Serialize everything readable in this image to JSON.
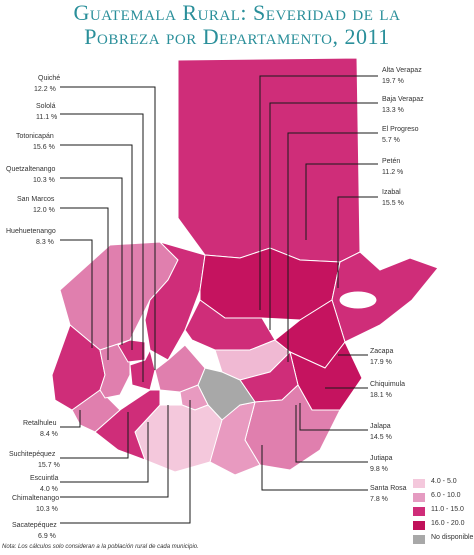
{
  "title": {
    "line1": "Guatemala Rural: Severidad de la",
    "line2": "Pobreza por Departamento, 2011"
  },
  "departments": {
    "quiche": {
      "name": "Quiché",
      "value": "12.2 %",
      "pct": 12.2,
      "color": "#cf2d79"
    },
    "solola": {
      "name": "Sololá",
      "value": "11.1 %",
      "pct": 11.1,
      "color": "#cf2d79"
    },
    "totonicapan": {
      "name": "Totonicapán",
      "value": "15.6 %",
      "pct": 15.6,
      "color": "#cf2d79"
    },
    "quetzaltenango": {
      "name": "Quetzaltenango",
      "value": "10.3 %",
      "pct": 10.3,
      "color": "#e07fae"
    },
    "san_marcos": {
      "name": "San Marcos",
      "value": "12.0 %",
      "pct": 12.0,
      "color": "#cf2d79"
    },
    "huehuetenango": {
      "name": "Huehuetenango",
      "value": "8.3 %",
      "pct": 8.3,
      "color": "#e07fae"
    },
    "alta_verapaz": {
      "name": "Alta Verapaz",
      "value": "19.7 %",
      "pct": 19.7,
      "color": "#c5135f"
    },
    "baja_verapaz": {
      "name": "Baja Verapaz",
      "value": "13.3 %",
      "pct": 13.3,
      "color": "#cf2d79"
    },
    "el_progreso": {
      "name": "El Progreso",
      "value": "5.7 %",
      "pct": 5.7,
      "color": "#f0b9d3"
    },
    "peten": {
      "name": "Petén",
      "value": "11.2 %",
      "pct": 11.2,
      "color": "#cf2d79"
    },
    "izabal": {
      "name": "Izabal",
      "value": "15.5 %",
      "pct": 15.5,
      "color": "#cf2d79"
    },
    "retalhuleu": {
      "name": "Retalhuleu",
      "value": "8.4 %",
      "pct": 8.4,
      "color": "#e07fae"
    },
    "suchitepequez": {
      "name": "Suchitepéquez",
      "value": "15.7 %",
      "pct": 15.7,
      "color": "#cf2d79"
    },
    "escuintla": {
      "name": "Escuintla",
      "value": "4.0 %",
      "pct": 4.0,
      "color": "#f4c8dc"
    },
    "chimaltenango": {
      "name": "Chimaltenango",
      "value": "10.3 %",
      "pct": 10.3,
      "color": "#e07fae"
    },
    "sacatepequez": {
      "name": "Sacatepéquez",
      "value": "6.9 %",
      "pct": 6.9,
      "color": "#e89ac0"
    },
    "zacapa": {
      "name": "Zacapa",
      "value": "17.9 %",
      "pct": 17.9,
      "color": "#c5135f"
    },
    "chiquimula": {
      "name": "Chiquimula",
      "value": "18.1 %",
      "pct": 18.1,
      "color": "#c5135f"
    },
    "jalapa": {
      "name": "Jalapa",
      "value": "14.5 %",
      "pct": 14.5,
      "color": "#cf2d79"
    },
    "jutiapa": {
      "name": "Jutiapa",
      "value": "9.8 %",
      "pct": 9.8,
      "color": "#e07fae"
    },
    "santa_rosa": {
      "name": "Santa Rosa",
      "value": "7.8 %",
      "pct": 7.8,
      "color": "#e89ac0"
    },
    "guatemala": {
      "color": "#a8a8a8"
    }
  },
  "legend": [
    {
      "label": "4.0 - 5.0",
      "color": "#f4c8dc"
    },
    {
      "label": "6.0 - 10.0",
      "color": "#e59bc1"
    },
    {
      "label": "11.0 - 15.0",
      "color": "#cf2d79"
    },
    {
      "label": "16.0 - 20.0",
      "color": "#c0115a"
    },
    {
      "label": "No disponible",
      "color": "#a8a8a8"
    }
  ],
  "note": "Nota: Los cálculos solo consideran a la población rural de cada municipio."
}
